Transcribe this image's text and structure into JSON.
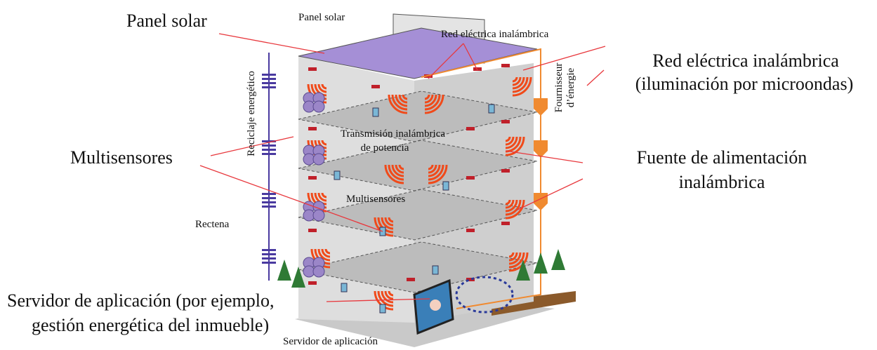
{
  "callouts": {
    "solar_panel": "Panel solar",
    "multisensors": "Multisensores",
    "app_server": [
      "Servidor de aplicación (por ejemplo,",
      "gestión energética del inmueble)"
    ],
    "wireless_grid": [
      "Red eléctrica inalámbrica",
      "(iluminación por microondas)"
    ],
    "wireless_supply": [
      "Fuente de alimentación",
      "inalámbrica"
    ]
  },
  "labels": {
    "solar_panel": "Panel solar",
    "wireless_grid": "Red eléctrica inalámbrica",
    "energy_recycling": "Reciclaje energético",
    "energy_supplier": [
      "Fournisseur",
      "d’énergie"
    ],
    "wireless_transmission": [
      "Transmisión inalámbrica",
      "de potencia"
    ],
    "multisensors": "Multisensores",
    "rectenna": "Rectena",
    "app_server": "Servidor de aplicación"
  }
}
